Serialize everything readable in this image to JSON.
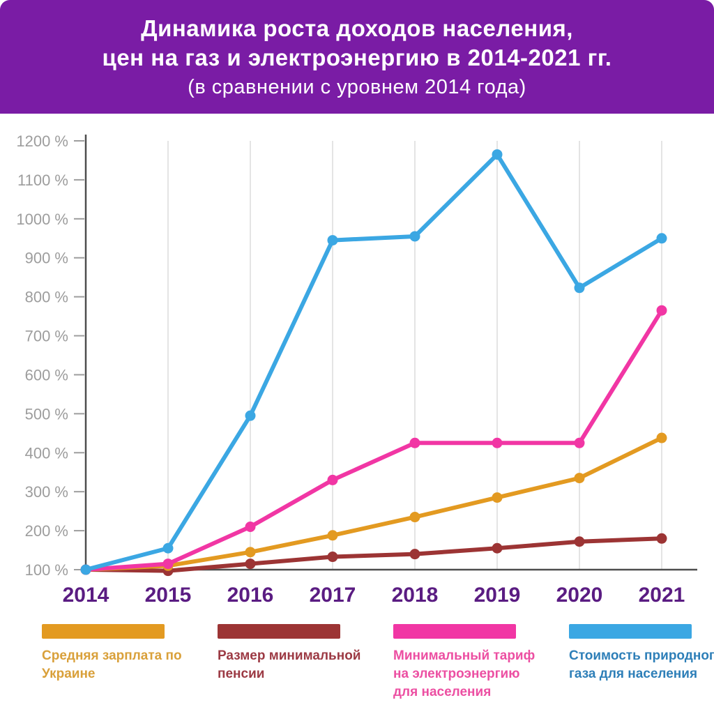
{
  "header": {
    "title_line1": "Динамика роста доходов населения,",
    "title_line2": "цен на газ и электроэнергию в 2014-2021 гг.",
    "subtitle": "(в сравнении с уровнем 2014 года)",
    "bg_color": "#7A1CA5",
    "text_color": "#FFFFFF"
  },
  "chart_data": {
    "type": "line",
    "categories": [
      "2014",
      "2015",
      "2016",
      "2017",
      "2018",
      "2019",
      "2020",
      "2021"
    ],
    "series": [
      {
        "name": "Размер минимальной пенсии",
        "color": "#9C3434",
        "values": [
          100,
          97,
          115,
          133,
          140,
          155,
          172,
          180
        ]
      },
      {
        "name": "Средняя зарплата по Украине",
        "color": "#E39A21",
        "values": [
          100,
          110,
          145,
          188,
          235,
          285,
          335,
          438
        ]
      },
      {
        "name": "Минимальный тариф на электроэнергию для населения",
        "color": "#F136A4",
        "values": [
          100,
          115,
          210,
          330,
          425,
          425,
          425,
          765
        ]
      },
      {
        "name": "Стоимость природного газа для населения",
        "color": "#3BA7E3",
        "values": [
          100,
          155,
          495,
          945,
          955,
          1165,
          823,
          950
        ]
      }
    ],
    "title": "Динамика роста доходов населения, цен на газ и электроэнергию в 2014-2021 гг.",
    "subtitle": "(в сравнении с уровнем 2014 года)",
    "xlabel": "",
    "ylabel": "",
    "y_ticks": [
      100,
      200,
      300,
      400,
      500,
      600,
      700,
      800,
      900,
      1000,
      1100,
      1200
    ],
    "y_tick_suffix": " %",
    "ylim": [
      100,
      1200
    ],
    "grid": "vertical-only",
    "legend_position": "bottom"
  },
  "axis_style": {
    "y_label_color": "#9D9D9D",
    "x_label_color": "#5A1C82",
    "axis_color": "#4D4D4D",
    "grid_color": "#DBDBDB"
  },
  "legend": {
    "items": [
      {
        "label": "Средняя зарплата по Украине",
        "color": "#E39A21",
        "text_color": "#D9A03A"
      },
      {
        "label": "Размер минимальной пенсии",
        "color": "#9C3434",
        "text_color": "#9C3A44"
      },
      {
        "label": "Минимальный тариф на электроэнергию для населения",
        "color": "#F136A4",
        "text_color": "#EC4FA2"
      },
      {
        "label": "Стоимость природного газа для населения",
        "color": "#3BA7E3",
        "text_color": "#2E7FB8"
      }
    ]
  }
}
